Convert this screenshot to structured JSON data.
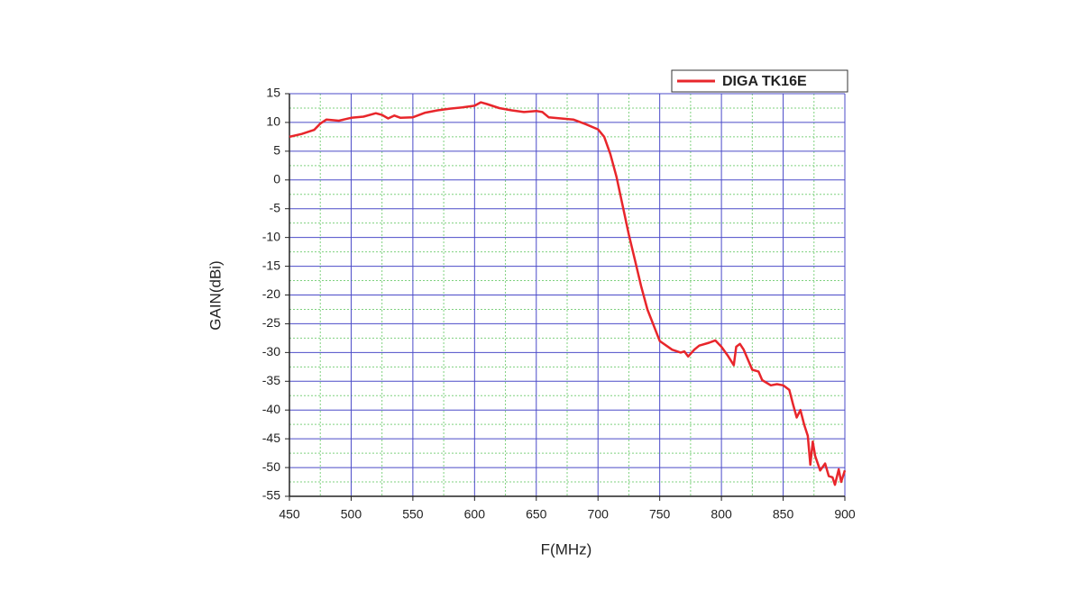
{
  "chart_data": {
    "type": "line",
    "x_label": "F(MHz)",
    "y_label": "GAIN(dBi)",
    "xlim": [
      450,
      900
    ],
    "ylim": [
      -55,
      15
    ],
    "xticks": [
      450,
      500,
      550,
      600,
      650,
      700,
      750,
      800,
      850,
      900
    ],
    "yticks": [
      -55,
      -50,
      -45,
      -40,
      -35,
      -30,
      -25,
      -20,
      -15,
      -10,
      -5,
      0,
      5,
      10,
      15
    ],
    "grid": true,
    "legend": "top-right",
    "x": [
      450,
      460,
      470,
      475,
      480,
      490,
      500,
      510,
      520,
      525,
      530,
      535,
      540,
      550,
      560,
      570,
      580,
      590,
      600,
      605,
      610,
      620,
      630,
      640,
      650,
      655,
      660,
      670,
      680,
      690,
      700,
      705,
      710,
      715,
      720,
      725,
      730,
      735,
      740,
      750,
      760,
      767,
      770,
      773,
      778,
      782,
      790,
      795,
      800,
      805,
      810,
      812,
      815,
      818,
      822,
      825,
      830,
      833,
      840,
      845,
      850,
      855,
      858,
      861,
      864,
      867,
      870,
      872,
      874,
      876,
      880,
      884,
      887,
      890,
      892,
      895,
      897,
      900
    ],
    "series": [
      {
        "name": "DIGA TK16E",
        "color": "#e8262b",
        "values": [
          7.5,
          8,
          8.7,
          9.8,
          10.5,
          10.3,
          10.8,
          11,
          11.6,
          11.3,
          10.7,
          11.2,
          10.8,
          10.9,
          11.7,
          12.1,
          12.4,
          12.6,
          12.9,
          13.5,
          13.2,
          12.5,
          12.1,
          11.8,
          12,
          11.8,
          10.9,
          10.7,
          10.5,
          9.7,
          8.8,
          7.5,
          4.5,
          0.5,
          -4.5,
          -9.5,
          -14,
          -18.5,
          -22.5,
          -28,
          -29.5,
          -30,
          -29.8,
          -30.7,
          -29.5,
          -28.8,
          -28.3,
          -27.9,
          -29,
          -30.5,
          -32.2,
          -29,
          -28.5,
          -29.5,
          -31.5,
          -33,
          -33.3,
          -34.8,
          -35.7,
          -35.5,
          -35.7,
          -36.5,
          -39,
          -41.3,
          -40,
          -42.5,
          -44.5,
          -49.5,
          -45.5,
          -48,
          -50.5,
          -49.3,
          -51.5,
          -51.7,
          -53,
          -50.3,
          -52.5,
          -50.5
        ]
      }
    ]
  }
}
